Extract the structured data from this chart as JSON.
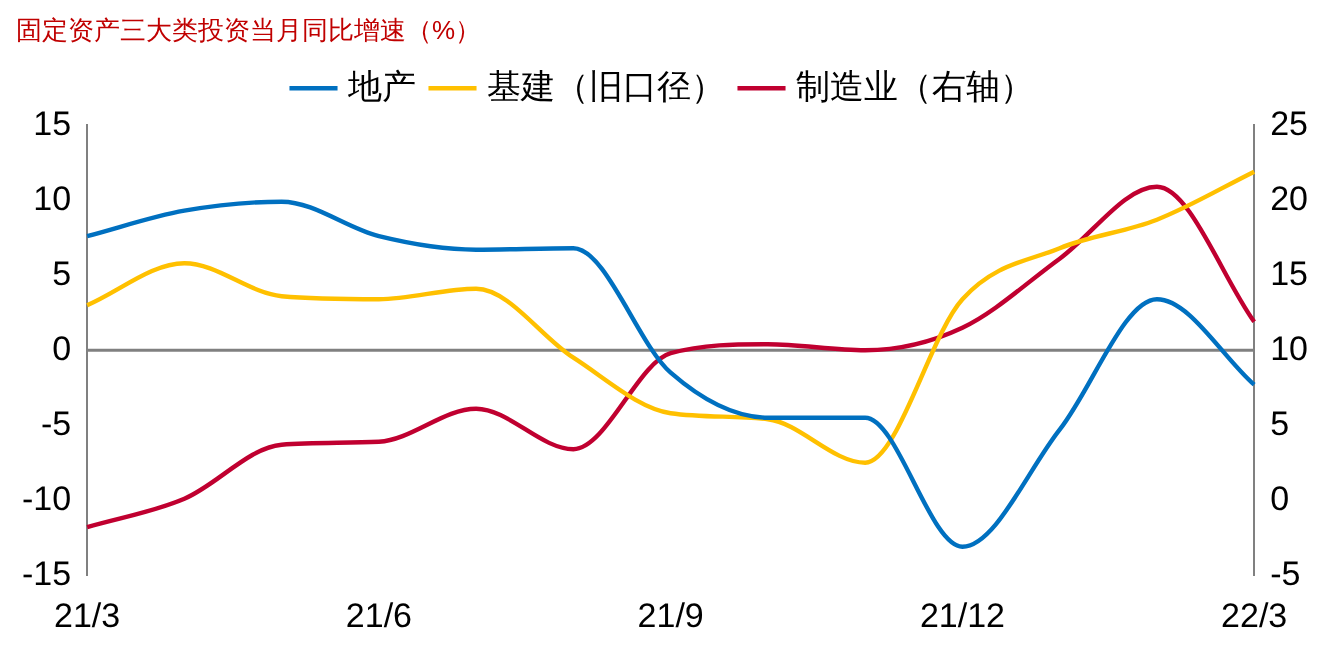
{
  "chart_data": {
    "type": "line",
    "title": "固定资产三大类投资当月同比增速（%）",
    "categories": [
      "21/3",
      null,
      null,
      "21/6",
      null,
      null,
      "21/9",
      null,
      null,
      "21/12",
      null,
      null,
      "22/3"
    ],
    "series": [
      {
        "name": "地产",
        "color": "#0070c0",
        "values": [
          7.6,
          9.3,
          9.9,
          7.6,
          6.7,
          6.8,
          -1.5,
          -4.5,
          -4.5,
          -13.1,
          -5.3,
          3.4,
          -2.3
        ]
      },
      {
        "name": "基建（旧口径）",
        "color": "#ffc000",
        "values": [
          3.0,
          5.8,
          3.6,
          3.4,
          4.1,
          -0.5,
          -4.2,
          -4.6,
          -7.5,
          3.4,
          6.8,
          8.7,
          11.9
        ]
      },
      {
        "name": "制造业（右轴）",
        "color": "#c00030",
        "axis": "y2",
        "values": [
          -1.8,
          0.1,
          3.7,
          3.9,
          6.1,
          3.4,
          9.8,
          10.4,
          10.0,
          11.5,
          16.1,
          20.9,
          11.9
        ]
      }
    ],
    "ylim": [
      -15,
      15
    ],
    "yticks": [
      -15,
      -10,
      -5,
      0,
      5,
      10,
      15
    ],
    "y2lim": [
      -5,
      25
    ],
    "y2ticks": [
      -5,
      0,
      5,
      10,
      15,
      20,
      25
    ],
    "ref_lines": [
      {
        "axis": "y",
        "value": 0,
        "color": "#808080"
      }
    ],
    "legend": "top",
    "grid": false
  }
}
